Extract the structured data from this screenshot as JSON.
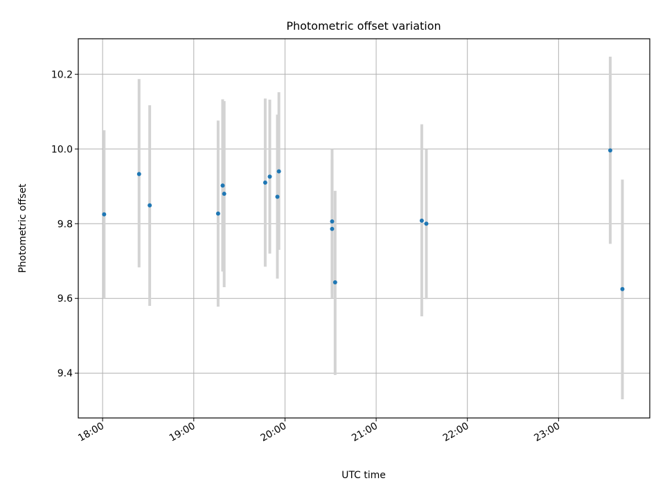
{
  "chart_data": {
    "type": "scatter",
    "title": "Photometric offset variation",
    "xlabel": "UTC time",
    "ylabel": "Photometric offset",
    "x_is_time": true,
    "xlim": [
      "17:44",
      "24:00"
    ],
    "ylim": [
      9.28,
      10.295
    ],
    "xticks": [
      "18:00",
      "19:00",
      "20:00",
      "21:00",
      "22:00",
      "23:00"
    ],
    "yticks": [
      9.4,
      9.6,
      9.8,
      10.0,
      10.2
    ],
    "ytick_labels": [
      "9.4",
      "9.6",
      "9.8",
      "10.0",
      "10.2"
    ],
    "grid": true,
    "colors": {
      "points": "#1f77b4",
      "errorbars": "#d3d3d3",
      "grid": "#b0b0b0"
    },
    "series": [
      {
        "points": [
          {
            "x": "18:01",
            "y": 9.825,
            "yerr_low": 9.6,
            "yerr_high": 10.05
          },
          {
            "x": "18:24",
            "y": 9.933,
            "yerr_low": 9.683,
            "yerr_high": 10.187
          },
          {
            "x": "18:31",
            "y": 9.849,
            "yerr_low": 9.58,
            "yerr_high": 10.117
          },
          {
            "x": "19:16",
            "y": 9.827,
            "yerr_low": 9.578,
            "yerr_high": 10.076
          },
          {
            "x": "19:19",
            "y": 9.902,
            "yerr_low": 9.672,
            "yerr_high": 10.133
          },
          {
            "x": "19:20",
            "y": 9.88,
            "yerr_low": 9.63,
            "yerr_high": 10.128
          },
          {
            "x": "19:47",
            "y": 9.91,
            "yerr_low": 9.685,
            "yerr_high": 10.135
          },
          {
            "x": "19:50",
            "y": 9.926,
            "yerr_low": 9.72,
            "yerr_high": 10.132
          },
          {
            "x": "19:55",
            "y": 9.872,
            "yerr_low": 9.653,
            "yerr_high": 10.092
          },
          {
            "x": "19:56",
            "y": 9.94,
            "yerr_low": 9.73,
            "yerr_high": 10.152
          },
          {
            "x": "20:31",
            "y": 9.806,
            "yerr_low": 9.612,
            "yerr_high": 10.0
          },
          {
            "x": "20:31",
            "y": 9.786,
            "yerr_low": 9.6,
            "yerr_high": 9.972
          },
          {
            "x": "20:33",
            "y": 9.643,
            "yerr_low": 9.395,
            "yerr_high": 9.888
          },
          {
            "x": "21:30",
            "y": 9.808,
            "yerr_low": 9.552,
            "yerr_high": 10.066
          },
          {
            "x": "21:33",
            "y": 9.8,
            "yerr_low": 9.598,
            "yerr_high": 10.0
          },
          {
            "x": "23:34",
            "y": 9.996,
            "yerr_low": 9.746,
            "yerr_high": 10.247
          },
          {
            "x": "23:42",
            "y": 9.625,
            "yerr_low": 9.33,
            "yerr_high": 9.918
          }
        ]
      }
    ]
  }
}
